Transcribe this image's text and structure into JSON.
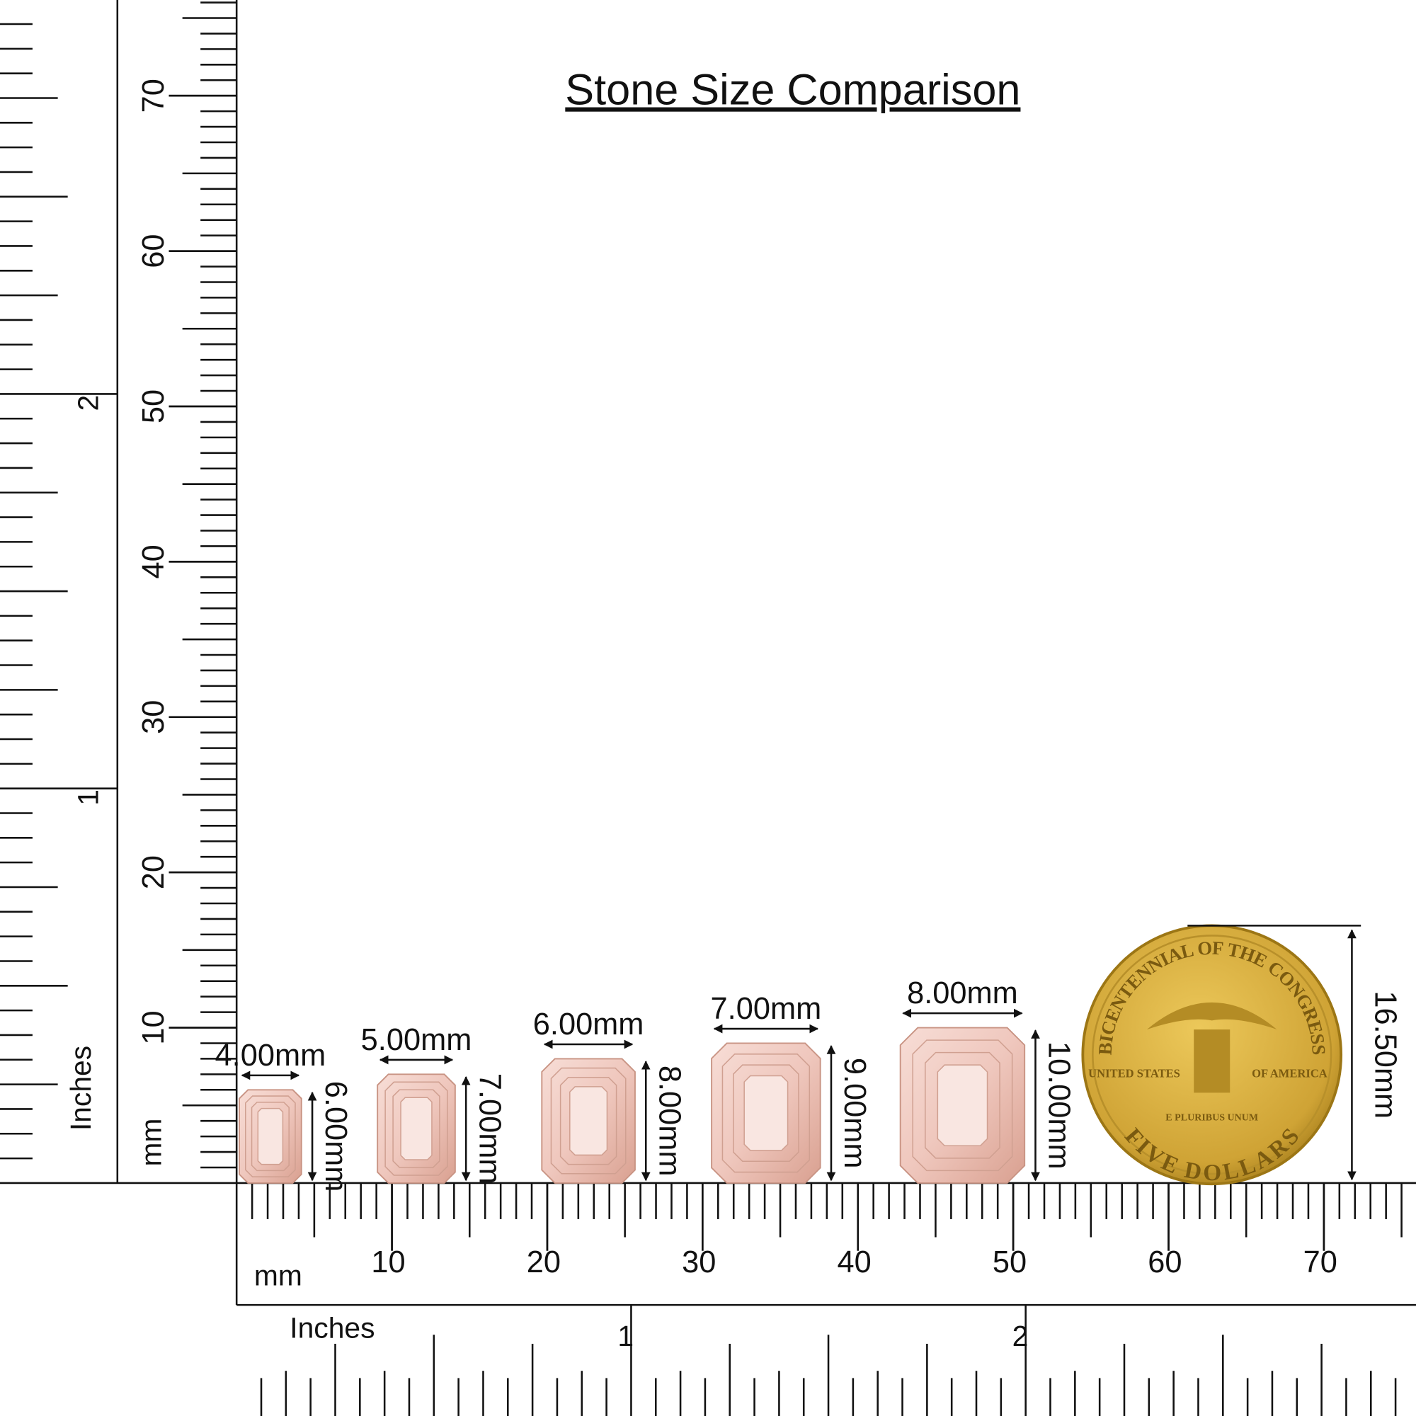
{
  "title": "Stone Size Comparison",
  "rulers": {
    "mm_label": "mm",
    "inches_label": "Inches",
    "mm_ticks": [
      10,
      20,
      30,
      40,
      50,
      60,
      70
    ],
    "inch_ticks": [
      1,
      2
    ]
  },
  "stones": [
    {
      "width": "4.00mm",
      "height": "6.00mm"
    },
    {
      "width": "5.00mm",
      "height": "7.00mm"
    },
    {
      "width": "6.00mm",
      "height": "8.00mm"
    },
    {
      "width": "7.00mm",
      "height": "9.00mm"
    },
    {
      "width": "8.00mm",
      "height": "10.00mm"
    }
  ],
  "coin": {
    "diameter": "16.50mm",
    "legend_top": "BICENTENNIAL OF THE CONGRESS",
    "left": "UNITED STATES",
    "right": "OF AMERICA",
    "motto": "E PLURIBUS UNUM",
    "bottom": "FIVE DOLLARS"
  }
}
